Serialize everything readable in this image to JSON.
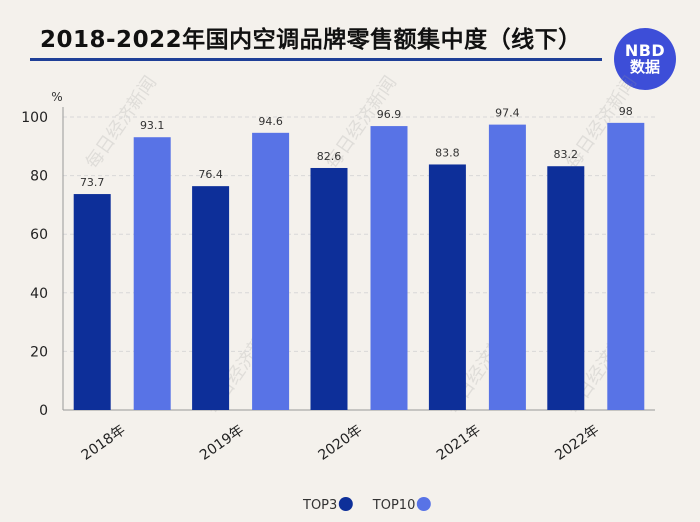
{
  "title": "2018-2022年国内空调品牌零售额集中度（线下）",
  "logo": {
    "line1": "NBD",
    "line2": "数据"
  },
  "watermark": "每日经济新闻",
  "colors": {
    "top3": "#0d2f99",
    "top10": "#5873e6",
    "grid": "#d8d8d8",
    "axis": "#999999",
    "rule": "#1f3f97",
    "logo_bg": "#3d4ed8"
  },
  "chart_data": {
    "type": "bar",
    "categories": [
      "2018年",
      "2019年",
      "2020年",
      "2021年",
      "2022年"
    ],
    "series": [
      {
        "name": "TOP3",
        "values": [
          73.7,
          76.4,
          82.6,
          83.8,
          83.2
        ]
      },
      {
        "name": "TOP10",
        "values": [
          93.1,
          94.6,
          96.9,
          97.4,
          98
        ]
      }
    ],
    "ylabel": "%",
    "ylim": [
      0,
      100
    ],
    "yticks": [
      0,
      20,
      40,
      60,
      80,
      100
    ],
    "grid": true,
    "legend_position": "bottom-center"
  }
}
